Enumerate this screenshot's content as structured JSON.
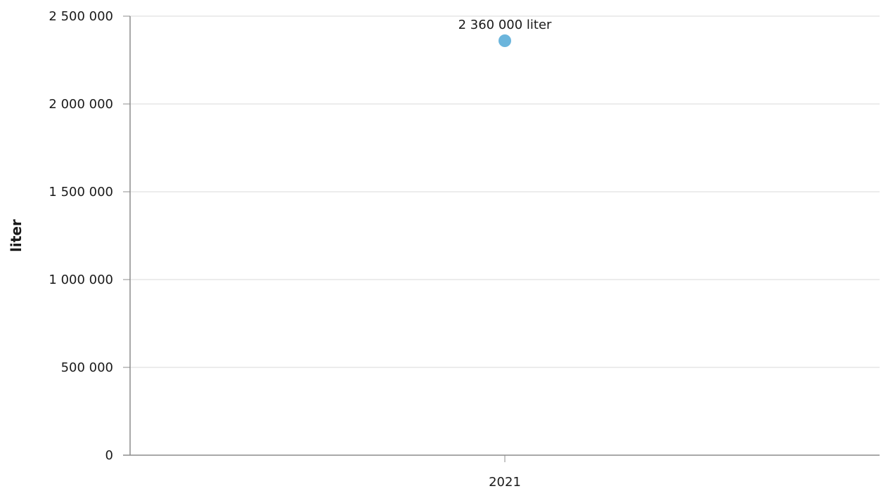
{
  "chart_data": {
    "type": "scatter",
    "title": "",
    "xlabel": "",
    "ylabel": "liter",
    "categories": [
      "2021"
    ],
    "series": [
      {
        "values": [
          2360000
        ],
        "data_labels": [
          "2 360 000 liter"
        ],
        "color": "#6bb5dc"
      }
    ],
    "ylim": [
      0,
      2500000
    ],
    "yticks": [
      0,
      500000,
      1000000,
      1500000,
      2000000,
      2500000
    ],
    "ytick_labels": [
      "0",
      "500 000",
      "1 000 000",
      "1 500 000",
      "2 000 000",
      "2 500 000"
    ],
    "grid": true,
    "legend": "none"
  }
}
